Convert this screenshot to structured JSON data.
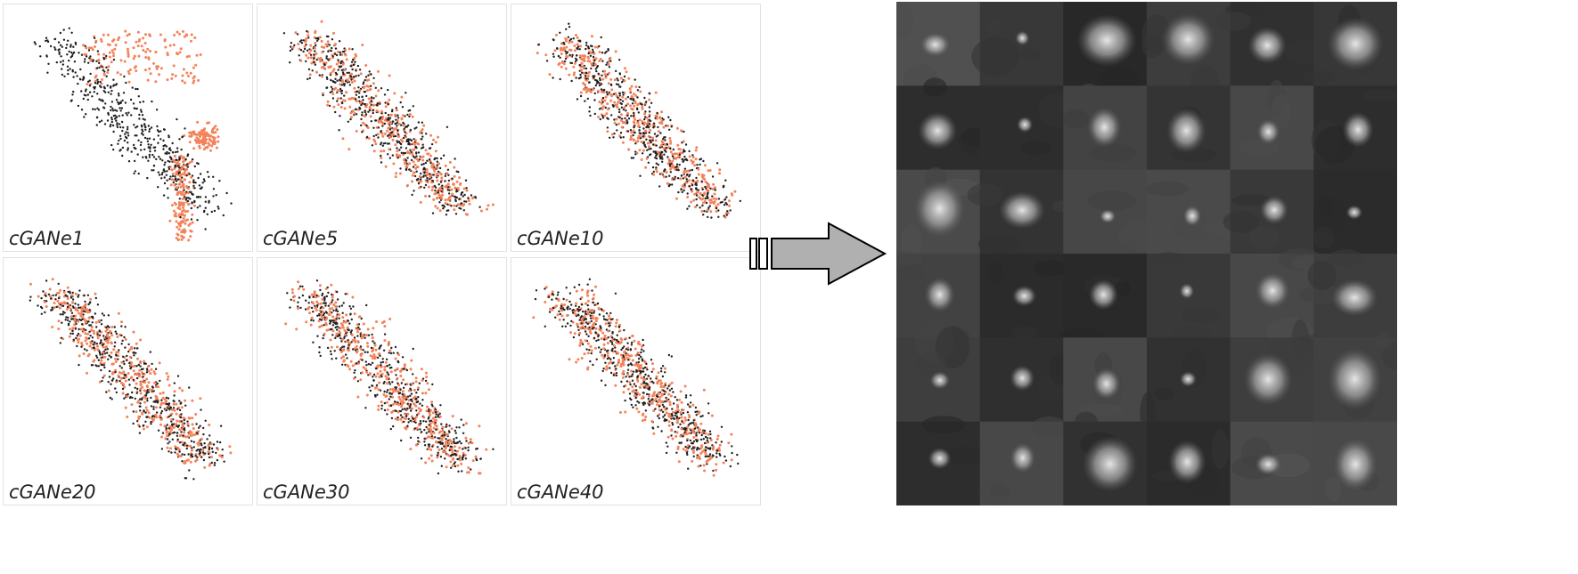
{
  "chart_data": [
    {
      "type": "scatter",
      "panel_label": "cGANe1",
      "series": [],
      "pattern": "separated"
    },
    {
      "type": "scatter",
      "panel_label": "cGANe5",
      "series": [],
      "pattern": "mixed"
    },
    {
      "type": "scatter",
      "panel_label": "cGANe10",
      "series": [],
      "pattern": "mixed"
    },
    {
      "type": "scatter",
      "panel_label": "cGANe20",
      "series": [],
      "pattern": "mixed"
    },
    {
      "type": "scatter",
      "panel_label": "cGANe30",
      "series": [],
      "pattern": "mixed"
    },
    {
      "type": "scatter",
      "panel_label": "cGANe40",
      "series": [],
      "pattern": "mixed"
    }
  ],
  "colors": {
    "real": "#1f1f1f",
    "generated": "#f4825a",
    "arrow_fill": "#b0b0b0",
    "arrow_stroke": "#000000"
  },
  "mosaic": {
    "rows": 6,
    "cols": 6,
    "content": "grayscale image patches"
  }
}
